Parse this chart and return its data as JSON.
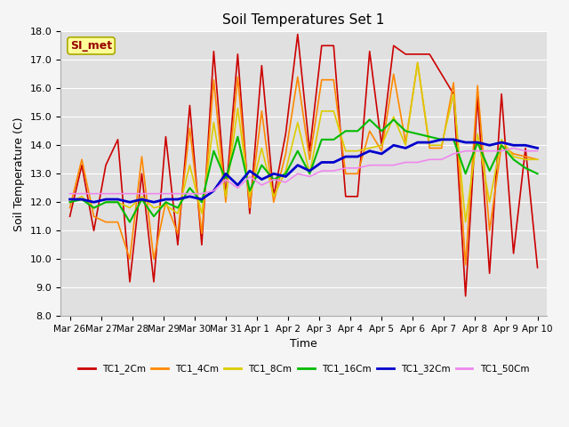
{
  "title": "Soil Temperatures Set 1",
  "xlabel": "Time",
  "ylabel": "Soil Temperature (C)",
  "ylim": [
    8.0,
    18.0
  ],
  "yticks": [
    8.0,
    9.0,
    10.0,
    11.0,
    12.0,
    13.0,
    14.0,
    15.0,
    16.0,
    17.0,
    18.0
  ],
  "annotation_text": "SI_met",
  "bg_color": "#e0e0e0",
  "fig_color": "#f5f5f5",
  "series_colors": {
    "TC1_2Cm": "#cc0000",
    "TC1_4Cm": "#ff8800",
    "TC1_8Cm": "#ddcc00",
    "TC1_16Cm": "#00bb00",
    "TC1_32Cm": "#0000cc",
    "TC1_50Cm": "#ee88ee"
  },
  "x_labels": [
    "Mar 26",
    "Mar 27",
    "Mar 28",
    "Mar 29",
    "Mar 30",
    "Mar 31",
    "Apr 1",
    "Apr 2",
    "Apr 3",
    "Apr 4",
    "Apr 5",
    "Apr 6",
    "Apr 7",
    "Apr 8",
    "Apr 9",
    "Apr 10"
  ],
  "TC1_2Cm": [
    11.5,
    13.3,
    11.0,
    13.3,
    14.2,
    9.2,
    13.0,
    9.2,
    14.3,
    10.5,
    15.4,
    10.5,
    17.3,
    12.2,
    17.2,
    11.6,
    16.8,
    12.2,
    14.4,
    17.9,
    13.8,
    17.5,
    17.5,
    12.2,
    12.2,
    17.3,
    14.0,
    17.5,
    17.2,
    17.2,
    17.2,
    16.5,
    15.8,
    8.7,
    15.7,
    9.5,
    15.8,
    10.2,
    13.9,
    9.7
  ],
  "TC1_4Cm": [
    11.8,
    13.5,
    11.5,
    11.3,
    11.3,
    10.0,
    13.6,
    10.0,
    12.0,
    10.9,
    14.6,
    10.9,
    16.3,
    12.0,
    16.4,
    11.8,
    15.2,
    12.0,
    13.7,
    16.4,
    13.5,
    16.3,
    16.3,
    13.0,
    13.0,
    14.5,
    13.8,
    16.5,
    14.1,
    16.9,
    13.9,
    13.9,
    16.2,
    9.8,
    16.1,
    11.0,
    14.0,
    13.7,
    13.6,
    13.5
  ],
  "TC1_8Cm": [
    12.0,
    12.2,
    11.8,
    12.0,
    12.0,
    11.8,
    12.2,
    11.8,
    11.9,
    11.6,
    13.3,
    11.6,
    14.8,
    12.2,
    15.3,
    12.2,
    13.9,
    12.2,
    13.1,
    14.8,
    13.0,
    15.2,
    15.2,
    13.8,
    13.8,
    13.9,
    14.0,
    15.0,
    14.0,
    16.9,
    14.0,
    14.0,
    15.8,
    11.3,
    14.4,
    12.0,
    14.2,
    13.6,
    13.5,
    13.5
  ],
  "TC1_16Cm": [
    12.0,
    12.1,
    11.8,
    12.0,
    12.0,
    11.3,
    12.1,
    11.5,
    12.0,
    11.8,
    12.5,
    12.0,
    13.8,
    12.8,
    14.3,
    12.4,
    13.3,
    12.8,
    13.0,
    13.8,
    13.0,
    14.2,
    14.2,
    14.5,
    14.5,
    14.9,
    14.5,
    14.9,
    14.5,
    14.4,
    14.3,
    14.2,
    14.2,
    13.0,
    14.1,
    13.1,
    14.0,
    13.5,
    13.2,
    13.0
  ],
  "TC1_32Cm": [
    12.1,
    12.1,
    12.0,
    12.1,
    12.1,
    12.0,
    12.1,
    12.0,
    12.1,
    12.1,
    12.2,
    12.1,
    12.4,
    13.0,
    12.6,
    13.1,
    12.8,
    13.0,
    12.9,
    13.3,
    13.1,
    13.4,
    13.4,
    13.6,
    13.6,
    13.8,
    13.7,
    14.0,
    13.9,
    14.1,
    14.1,
    14.2,
    14.2,
    14.1,
    14.1,
    14.0,
    14.1,
    14.0,
    14.0,
    13.9
  ],
  "TC1_50Cm": [
    12.3,
    12.3,
    12.3,
    12.3,
    12.3,
    12.3,
    12.3,
    12.3,
    12.3,
    12.3,
    12.3,
    12.3,
    12.4,
    12.8,
    12.5,
    12.9,
    12.6,
    12.8,
    12.7,
    13.0,
    12.9,
    13.1,
    13.1,
    13.2,
    13.2,
    13.3,
    13.3,
    13.3,
    13.4,
    13.4,
    13.5,
    13.5,
    13.7,
    13.8,
    13.8,
    13.8,
    13.8,
    13.9,
    13.8,
    13.8
  ]
}
